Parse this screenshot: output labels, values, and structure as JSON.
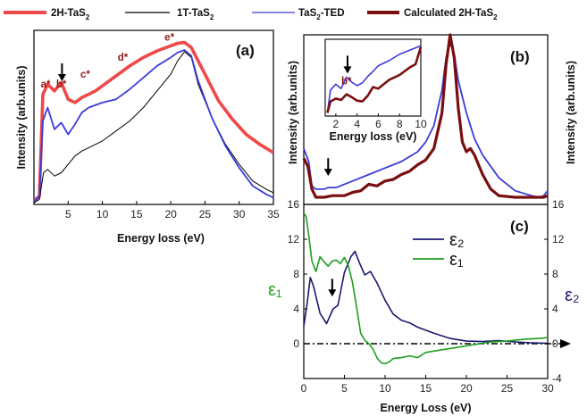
{
  "legend": [
    {
      "label": "2H-TaS",
      "sub": "2",
      "color": "#f04848"
    },
    {
      "label": "1T-TaS",
      "sub": "2",
      "color": "#000000"
    },
    {
      "label": "TaS",
      "sub": "2",
      "label_after": "-TED",
      "color": "#3b3bdc"
    },
    {
      "label": "Calculated 2H-TaS",
      "sub": "2",
      "color": "#7a0e0e"
    }
  ],
  "colors": {
    "red": "#f04848",
    "black": "#000000",
    "blue": "#3b3bdc",
    "dark_red": "#7a0e0e",
    "eps2": "#191970",
    "eps1": "#1e9e1e",
    "annotation": "#8b1a1a"
  },
  "chart_data": [
    {
      "panel": "a",
      "type": "line",
      "panel_label": "(a)",
      "xlabel": "Energy loss (eV)",
      "ylabel": "Intensity (arb.units)",
      "xlim": [
        0,
        35
      ],
      "x_ticks": [
        5,
        10,
        15,
        20,
        25,
        30,
        35
      ],
      "annotations": [
        {
          "text": "a*",
          "x": 1.7,
          "y": 0.7
        },
        {
          "text": "b*",
          "x": 4.0,
          "y": 0.7
        },
        {
          "text": "c*",
          "x": 7.5,
          "y": 0.76
        },
        {
          "text": "d*",
          "x": 13.0,
          "y": 0.86
        },
        {
          "text": "e*",
          "x": 19.8,
          "y": 0.98
        }
      ],
      "arrow": {
        "x": 4.1,
        "y": 0.69
      },
      "series": [
        {
          "name": "2H-TaS2",
          "color": "#f04848",
          "x": [
            0,
            0.8,
            1.3,
            2.0,
            3.0,
            4.0,
            5.0,
            6.0,
            7.0,
            8.0,
            9.0,
            10.0,
            12.0,
            14.0,
            16.0,
            18.0,
            20.0,
            21.0,
            22.0,
            23.0,
            25.0,
            27.0,
            29.0,
            31.0,
            33.0,
            35.0
          ],
          "y": [
            0.02,
            0.05,
            0.66,
            0.72,
            0.68,
            0.73,
            0.63,
            0.61,
            0.64,
            0.66,
            0.68,
            0.71,
            0.77,
            0.83,
            0.88,
            0.92,
            0.95,
            0.965,
            0.97,
            0.94,
            0.78,
            0.62,
            0.51,
            0.42,
            0.36,
            0.31
          ]
        },
        {
          "name": "1T-TaS2",
          "color": "#000000",
          "x": [
            0,
            0.8,
            1.4,
            2.0,
            3.0,
            4.0,
            5.0,
            6.0,
            7.0,
            8.0,
            10.0,
            12.0,
            14.0,
            16.0,
            18.0,
            20.0,
            21.0,
            22.0,
            23.0,
            24.0,
            26.0,
            28.0,
            30.0,
            32.0,
            34.0,
            35.0
          ],
          "y": [
            0.01,
            0.03,
            0.19,
            0.21,
            0.17,
            0.19,
            0.24,
            0.29,
            0.32,
            0.34,
            0.38,
            0.44,
            0.5,
            0.58,
            0.68,
            0.78,
            0.86,
            0.915,
            0.88,
            0.72,
            0.52,
            0.36,
            0.24,
            0.14,
            0.09,
            0.07
          ]
        },
        {
          "name": "TaS2-TED",
          "color": "#3b3bdc",
          "x": [
            0,
            0.8,
            1.3,
            2.0,
            3.0,
            4.0,
            5.0,
            6.0,
            7.0,
            8.0,
            10.0,
            12.0,
            14.0,
            16.0,
            18.0,
            20.0,
            21.0,
            22.0,
            23.0,
            24.0,
            26.0,
            28.0,
            30.0,
            32.0,
            34.0,
            35.0
          ],
          "y": [
            0.02,
            0.05,
            0.5,
            0.58,
            0.45,
            0.49,
            0.42,
            0.48,
            0.55,
            0.58,
            0.61,
            0.63,
            0.69,
            0.76,
            0.83,
            0.88,
            0.91,
            0.925,
            0.89,
            0.74,
            0.52,
            0.35,
            0.22,
            0.11,
            0.06,
            0.04
          ]
        }
      ]
    },
    {
      "panel": "b",
      "type": "line",
      "panel_label": "(b)",
      "ylabel_left": "Intensity (arb.units)",
      "ylabel_right": "Intensity (arb.units)",
      "xlim": [
        0,
        30
      ],
      "arrow": {
        "x": 3.0,
        "y": 0.12
      },
      "series": [
        {
          "name": "TaS2-TED",
          "color": "#3b3bdc",
          "x": [
            0,
            0.6,
            1.0,
            1.5,
            2.5,
            3.0,
            4.0,
            5.0,
            6.0,
            8.0,
            10.0,
            12.0,
            14.0,
            15.0,
            16.0,
            17.0,
            17.5,
            18.0,
            18.5,
            19.0,
            20.0,
            21.0,
            22.0,
            24.0,
            26.0,
            28.0,
            29.0,
            29.5,
            30.0
          ],
          "y": [
            0.3,
            0.22,
            0.07,
            0.05,
            0.05,
            0.06,
            0.06,
            0.08,
            0.1,
            0.14,
            0.18,
            0.22,
            0.28,
            0.34,
            0.44,
            0.66,
            0.86,
            0.95,
            0.88,
            0.72,
            0.52,
            0.36,
            0.26,
            0.12,
            0.04,
            0.01,
            0.0,
            0.01,
            0.04
          ]
        },
        {
          "name": "Calculated 2H-TaS2",
          "color": "#7a0e0e",
          "x": [
            0,
            0.5,
            1.0,
            1.5,
            2.5,
            3.5,
            5.0,
            6.0,
            7.0,
            8.0,
            9.0,
            10.0,
            11.0,
            12.0,
            13.0,
            14.0,
            15.0,
            16.0,
            17.0,
            17.5,
            18.0,
            18.5,
            19.0,
            19.5,
            20.0,
            20.5,
            21.0,
            22.0,
            23.0,
            24.0,
            26.0,
            28.0,
            29.0,
            29.5,
            30.0
          ],
          "y": [
            0.24,
            0.19,
            0.05,
            0.0,
            0.0,
            0.01,
            0.01,
            0.03,
            0.04,
            0.08,
            0.07,
            0.1,
            0.11,
            0.14,
            0.16,
            0.2,
            0.23,
            0.3,
            0.52,
            0.82,
            1.0,
            0.86,
            0.55,
            0.34,
            0.28,
            0.3,
            0.26,
            0.14,
            0.05,
            0.01,
            0.0,
            0.0,
            0.0,
            0.0,
            0.01
          ]
        }
      ],
      "inset": {
        "xlabel": "Energy loss (eV)",
        "xlim": [
          1,
          10
        ],
        "x_ticks": [
          2,
          4,
          6,
          8,
          10
        ],
        "annotation": {
          "text": "b*",
          "x": 3.0,
          "y": 0.42
        },
        "arrow": {
          "x": 3.1,
          "y": 0.52
        },
        "series": [
          {
            "name": "TaS2-TED",
            "color": "#3b3bdc",
            "x": [
              1.2,
              1.5,
              2.0,
              2.5,
              3.0,
              3.5,
              4.0,
              4.5,
              5.0,
              5.5,
              6.0,
              7.0,
              8.0,
              9.0,
              10.0
            ],
            "y": [
              0.02,
              0.34,
              0.42,
              0.36,
              0.52,
              0.45,
              0.4,
              0.44,
              0.53,
              0.6,
              0.68,
              0.75,
              0.84,
              0.9,
              0.96
            ]
          },
          {
            "name": "Calculated 2H-TaS2",
            "color": "#7a0e0e",
            "x": [
              1.2,
              1.5,
              2.0,
              2.5,
              3.0,
              3.5,
              4.0,
              4.5,
              5.0,
              5.5,
              6.0,
              7.0,
              8.0,
              9.0,
              9.5,
              10.0
            ],
            "y": [
              0.02,
              0.18,
              0.22,
              0.2,
              0.28,
              0.24,
              0.19,
              0.18,
              0.26,
              0.38,
              0.36,
              0.48,
              0.55,
              0.66,
              0.7,
              0.94
            ]
          }
        ]
      }
    },
    {
      "panel": "c",
      "type": "line",
      "panel_label": "(c)",
      "xlabel": "Energy Loss (eV)",
      "ylabel_left": "ε₁",
      "ylabel_right": "ε₂",
      "xlim": [
        0,
        30
      ],
      "ylim": [
        -4,
        16
      ],
      "x_ticks": [
        0,
        5,
        10,
        15,
        20,
        25,
        30
      ],
      "left_ticks": [
        0,
        4,
        8,
        12,
        16
      ],
      "right_ticks": [
        -4,
        0,
        4,
        8,
        12,
        16
      ],
      "zero_line": true,
      "arrow": {
        "x": 3.5,
        "y": 5.0
      },
      "series": [
        {
          "name": "ε₂",
          "color": "#191970",
          "x": [
            0,
            0.4,
            0.8,
            1.2,
            2.0,
            2.8,
            3.6,
            4.2,
            5.0,
            5.8,
            6.3,
            6.8,
            7.5,
            8.2,
            9.0,
            10.0,
            11.0,
            12.0,
            13.0,
            14.0,
            16.0,
            18.0,
            20.0,
            22.0,
            24.0,
            26.0,
            28.0,
            30.0
          ],
          "y": [
            2.0,
            4.5,
            7.6,
            6.6,
            3.5,
            2.3,
            4.0,
            4.4,
            8.2,
            10.0,
            10.6,
            9.4,
            7.9,
            8.3,
            7.0,
            5.0,
            3.4,
            2.7,
            2.4,
            1.9,
            1.2,
            0.6,
            0.3,
            0.25,
            0.35,
            0.2,
            0.1,
            0.05
          ]
        },
        {
          "name": "ε₁",
          "color": "#1e9e1e",
          "x": [
            0,
            0.3,
            0.6,
            1.0,
            1.5,
            2.0,
            2.5,
            3.0,
            3.5,
            4.0,
            4.5,
            5.0,
            5.5,
            6.0,
            6.5,
            7.0,
            7.5,
            8.0,
            8.5,
            9.0,
            9.5,
            10.0,
            10.5,
            11.0,
            12.0,
            13.0,
            14.0,
            15.0,
            17.0,
            19.0,
            21.0,
            23.0,
            25.0,
            27.0,
            29.0,
            30.0
          ],
          "y": [
            15.0,
            14.6,
            12.5,
            9.5,
            8.3,
            10.0,
            9.4,
            8.9,
            9.5,
            9.6,
            9.2,
            9.9,
            8.9,
            7.0,
            4.2,
            1.2,
            0.4,
            0.0,
            -0.6,
            -1.6,
            -2.2,
            -2.3,
            -2.1,
            -1.7,
            -1.6,
            -1.4,
            -1.6,
            -1.0,
            -0.7,
            -0.4,
            -0.1,
            0.2,
            0.3,
            0.5,
            0.6,
            0.7
          ]
        }
      ]
    }
  ]
}
